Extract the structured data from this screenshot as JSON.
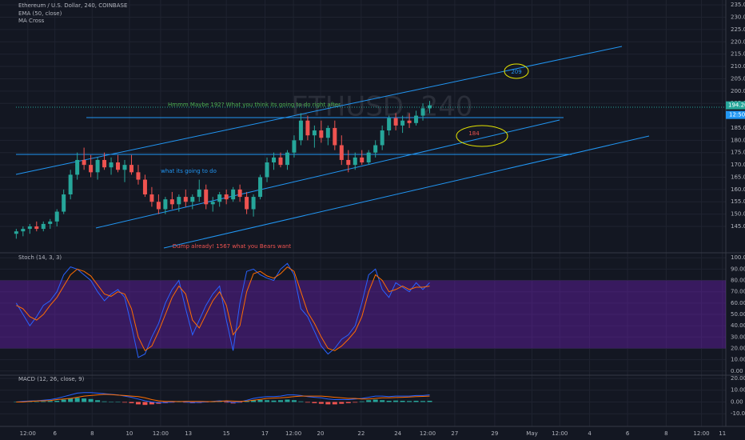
{
  "chart_data": [
    {
      "type": "candlestick",
      "title": "Ethereum / U.S. Dollar, 240, COINBASE",
      "indicators": [
        "EMA (50, close)",
        "MA Cross"
      ],
      "watermark": "ETHUSD, 240",
      "annotations": [
        "Hmmm Maybe 192? What you think its going to do right after",
        "what its going to do",
        "Dump already! 1567 what you Bears want",
        "209",
        "184"
      ],
      "last_price": {
        "value": 194.2,
        "label": "194.20"
      },
      "countdown": "12:50",
      "up_color": "#26a69a",
      "down_color": "#ef5350",
      "xlim": [
        -2.4,
        104.7
      ],
      "xticks": [
        {
          "value": 1.7,
          "label": "12:00"
        },
        {
          "value": 5.7,
          "label": "6"
        },
        {
          "value": 11.2,
          "label": "8"
        },
        {
          "value": 16.7,
          "label": "10"
        },
        {
          "value": 21.3,
          "label": "12:00"
        },
        {
          "value": 25.4,
          "label": "13"
        },
        {
          "value": 31.0,
          "label": "15"
        },
        {
          "value": 36.7,
          "label": "17"
        },
        {
          "value": 40.9,
          "label": "12:00"
        },
        {
          "value": 44.9,
          "label": "20"
        },
        {
          "value": 50.9,
          "label": "22"
        },
        {
          "value": 56.3,
          "label": "24"
        },
        {
          "value": 60.7,
          "label": "12:00"
        },
        {
          "value": 64.7,
          "label": "27"
        },
        {
          "value": 70.6,
          "label": "29"
        },
        {
          "value": 76.1,
          "label": "May"
        },
        {
          "value": 80.2,
          "label": "12:00"
        },
        {
          "value": 84.6,
          "label": "4"
        },
        {
          "value": 90.2,
          "label": "6"
        },
        {
          "value": 95.9,
          "label": "8"
        },
        {
          "value": 101.1,
          "label": "12:00"
        },
        {
          "value": 104.2,
          "label": "11"
        }
      ],
      "ylim": [
        134.6,
        237
      ],
      "yticks": [
        {
          "value": 235,
          "label": "235.00"
        },
        {
          "value": 230,
          "label": "230.00"
        },
        {
          "value": 225,
          "label": "225.00"
        },
        {
          "value": 220,
          "label": "220.00"
        },
        {
          "value": 215,
          "label": "215.00"
        },
        {
          "value": 210,
          "label": "210.00"
        },
        {
          "value": 205,
          "label": "205.00"
        },
        {
          "value": 200,
          "label": "200.00"
        },
        {
          "value": 195,
          "label": "195.00"
        },
        {
          "value": 185,
          "label": "185.00"
        },
        {
          "value": 180,
          "label": "180.00"
        },
        {
          "value": 175,
          "label": "175.00"
        },
        {
          "value": 170,
          "label": "170.00"
        },
        {
          "value": 165,
          "label": "165.00"
        },
        {
          "value": 160,
          "label": "160.00"
        },
        {
          "value": 155,
          "label": "155.00"
        },
        {
          "value": 150,
          "label": "150.00"
        },
        {
          "value": 145,
          "label": "145.00"
        }
      ],
      "candles": [
        [
          142,
          144,
          140,
          143
        ],
        [
          143,
          145,
          141,
          144
        ],
        [
          144,
          146,
          142,
          145
        ],
        [
          145,
          147,
          143,
          144
        ],
        [
          144,
          147,
          143,
          146
        ],
        [
          146,
          148,
          144,
          147
        ],
        [
          147,
          152,
          145,
          151
        ],
        [
          151,
          160,
          150,
          158
        ],
        [
          158,
          168,
          156,
          166
        ],
        [
          166,
          175,
          164,
          172
        ],
        [
          172,
          177,
          168,
          170
        ],
        [
          170,
          174,
          165,
          167
        ],
        [
          167,
          173,
          164,
          172
        ],
        [
          172,
          175,
          168,
          169
        ],
        [
          169,
          173,
          166,
          171
        ],
        [
          171,
          174,
          167,
          168
        ],
        [
          168,
          172,
          163,
          170
        ],
        [
          170,
          174,
          166,
          167
        ],
        [
          167,
          170,
          162,
          164
        ],
        [
          164,
          166,
          157,
          158
        ],
        [
          158,
          161,
          153,
          155
        ],
        [
          155,
          158,
          150,
          152
        ],
        [
          152,
          157,
          150,
          156
        ],
        [
          156,
          159,
          152,
          154
        ],
        [
          154,
          158,
          151,
          157
        ],
        [
          157,
          160,
          153,
          155
        ],
        [
          155,
          158,
          152,
          157
        ],
        [
          157,
          164,
          155,
          160
        ],
        [
          160,
          162,
          152,
          154
        ],
        [
          154,
          157,
          151,
          155
        ],
        [
          155,
          159,
          153,
          158
        ],
        [
          158,
          160,
          154,
          156
        ],
        [
          156,
          161,
          155,
          160
        ],
        [
          160,
          162,
          155,
          157
        ],
        [
          157,
          159,
          150,
          152
        ],
        [
          152,
          158,
          149,
          157
        ],
        [
          157,
          166,
          156,
          165
        ],
        [
          165,
          173,
          163,
          171
        ],
        [
          171,
          175,
          168,
          173
        ],
        [
          173,
          175,
          169,
          170
        ],
        [
          170,
          176,
          168,
          175
        ],
        [
          175,
          182,
          173,
          180
        ],
        [
          180,
          191,
          178,
          188
        ],
        [
          188,
          190,
          180,
          182
        ],
        [
          182,
          186,
          177,
          184
        ],
        [
          184,
          188,
          179,
          181
        ],
        [
          181,
          186,
          178,
          185
        ],
        [
          185,
          188,
          176,
          178
        ],
        [
          178,
          182,
          170,
          172
        ],
        [
          172,
          176,
          167,
          170
        ],
        [
          170,
          175,
          168,
          173
        ],
        [
          173,
          176,
          170,
          171
        ],
        [
          171,
          176,
          170,
          175
        ],
        [
          175,
          180,
          173,
          178
        ],
        [
          178,
          186,
          176,
          184
        ],
        [
          184,
          190,
          182,
          189
        ],
        [
          189,
          191,
          184,
          186
        ],
        [
          186,
          190,
          183,
          188
        ],
        [
          188,
          191,
          185,
          187
        ],
        [
          187,
          192,
          186,
          190
        ],
        [
          190,
          195,
          188,
          193
        ],
        [
          193,
          196,
          191,
          194.2
        ]
      ]
    },
    {
      "type": "line",
      "title": "Stoch (14, 3, 3)",
      "band": [
        20,
        80
      ],
      "band_color": "#7e1fd1",
      "ylim": [
        -3,
        103
      ],
      "yticks": [
        {
          "value": 100,
          "label": "100.00"
        },
        {
          "value": 90,
          "label": "90.00"
        },
        {
          "value": 80,
          "label": "80.00"
        },
        {
          "value": 70,
          "label": "70.00"
        },
        {
          "value": 60,
          "label": "60.00"
        },
        {
          "value": 50,
          "label": "50.00"
        },
        {
          "value": 40,
          "label": "40.00"
        },
        {
          "value": 30,
          "label": "30.00"
        },
        {
          "value": 20,
          "label": "20.00"
        },
        {
          "value": 10,
          "label": "10.00"
        },
        {
          "value": 0,
          "label": "0.00"
        }
      ],
      "series": [
        {
          "color": "#2962ff",
          "values": [
            60,
            50,
            40,
            48,
            58,
            62,
            70,
            85,
            92,
            90,
            85,
            80,
            70,
            62,
            68,
            72,
            65,
            40,
            12,
            15,
            30,
            42,
            60,
            72,
            80,
            55,
            32,
            45,
            58,
            68,
            75,
            45,
            18,
            60,
            88,
            90,
            85,
            82,
            80,
            90,
            95,
            85,
            55,
            48,
            35,
            22,
            15,
            20,
            28,
            32,
            40,
            60,
            85,
            90,
            72,
            65,
            78,
            74,
            70,
            78,
            72,
            78
          ]
        },
        {
          "color": "#ff6d00",
          "values": [
            58,
            55,
            48,
            45,
            50,
            58,
            65,
            75,
            85,
            90,
            88,
            84,
            76,
            68,
            66,
            70,
            68,
            55,
            30,
            18,
            22,
            35,
            50,
            65,
            75,
            68,
            45,
            38,
            50,
            62,
            70,
            58,
            32,
            40,
            70,
            86,
            88,
            84,
            82,
            86,
            92,
            88,
            70,
            52,
            42,
            30,
            20,
            18,
            22,
            28,
            35,
            48,
            70,
            85,
            80,
            70,
            72,
            75,
            72,
            74,
            74,
            75
          ]
        }
      ]
    },
    {
      "type": "macd",
      "title": "MACD (12, 26, close, 9)",
      "ylim": [
        -20,
        22
      ],
      "yticks": [
        {
          "value": 20,
          "label": "20.00"
        },
        {
          "value": 10,
          "label": "10.00"
        },
        {
          "value": 0,
          "label": "0.00"
        },
        {
          "value": -10,
          "label": "-10.00"
        }
      ],
      "hist_up_color": "#26a69a",
      "hist_down_color": "#ef5350",
      "histogram": [
        0,
        0.5,
        0.3,
        0.2,
        0.5,
        0.8,
        1,
        2,
        3,
        3.5,
        3,
        2.5,
        1.5,
        0.5,
        0.3,
        0.2,
        -0.5,
        -1,
        -2,
        -2.5,
        -2,
        -1.5,
        -1,
        -0.5,
        0.2,
        -0.5,
        -1,
        -0.8,
        -0.3,
        0.2,
        0.5,
        -0.5,
        -1.2,
        -0.5,
        0.8,
        1.5,
        1.8,
        1.5,
        1.2,
        1.5,
        2,
        1.5,
        0.5,
        -0.5,
        -1,
        -1.5,
        -2,
        -2,
        -1.5,
        -1,
        -0.5,
        0.5,
        1.5,
        2,
        1.5,
        1,
        1.2,
        1,
        0.8,
        1,
        0.8,
        1
      ],
      "series": [
        {
          "color": "#2962ff",
          "values": [
            0,
            0.5,
            0.8,
            1,
            1.5,
            2,
            3,
            4.5,
            6,
            7.5,
            8,
            8,
            7.5,
            7,
            6.5,
            6,
            5,
            4,
            2.5,
            1,
            0,
            -0.5,
            -0.5,
            0,
            0.5,
            0,
            -0.5,
            -0.3,
            0,
            0.5,
            1,
            0.5,
            -0.5,
            0,
            1.5,
            3,
            4,
            4.5,
            4.5,
            5,
            6,
            6,
            5.5,
            4.5,
            4,
            3.5,
            2.5,
            2,
            2,
            2,
            2.5,
            3,
            4,
            5,
            5,
            4.5,
            5,
            5,
            5,
            5.5,
            5.5,
            6
          ]
        },
        {
          "color": "#ff6d00",
          "values": [
            0,
            0,
            0.5,
            0.8,
            1,
            1.2,
            2,
            2.5,
            3,
            4,
            5,
            5.5,
            6,
            6.5,
            6.2,
            5.8,
            5.5,
            5,
            4.5,
            3.5,
            2,
            1,
            0.5,
            0.5,
            0.3,
            0.5,
            0.5,
            0.5,
            0.3,
            0.3,
            0.5,
            1,
            0.7,
            0.5,
            0.7,
            1.5,
            2.2,
            3,
            3.3,
            3.5,
            4,
            4.5,
            5,
            5,
            5,
            5,
            4.5,
            4,
            3.5,
            3,
            3,
            2.5,
            2.5,
            3,
            3.5,
            3.5,
            3.8,
            4,
            4.2,
            4.5,
            4.7,
            5
          ]
        }
      ]
    }
  ]
}
